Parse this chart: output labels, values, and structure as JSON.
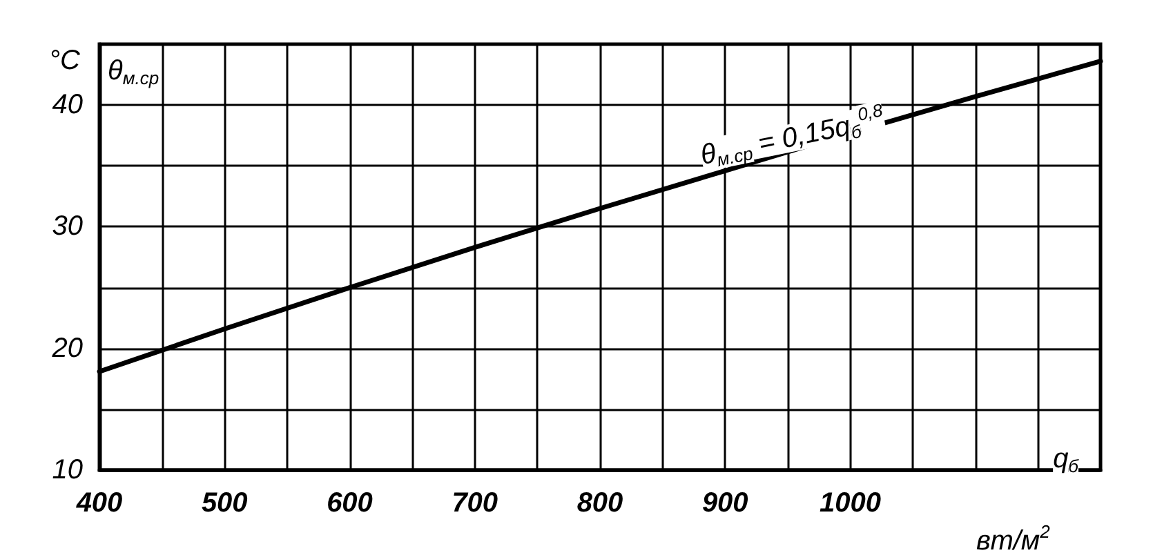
{
  "chart_data": {
    "type": "line",
    "ylabel": "°C",
    "xlabel": "вт/м$^{2}$",
    "x": [
      400,
      500,
      600,
      700,
      800,
      900,
      1000,
      1100,
      1200
    ],
    "series": [
      {
        "color": "#000000",
        "values": [
          18.1,
          21.6,
          25.0,
          28.3,
          31.5,
          34.6,
          37.7,
          40.7,
          43.6
        ]
      }
    ],
    "xlim": [
      400,
      1200
    ],
    "xticks": [
      400,
      {
        "value": 450,
        "label": null
      },
      500,
      {
        "value": 550,
        "label": null
      },
      600,
      {
        "value": 650,
        "label": null
      },
      700,
      {
        "value": 750,
        "label": null
      },
      800,
      {
        "value": 850,
        "label": null
      },
      900,
      {
        "value": 950,
        "label": null
      },
      1000,
      {
        "value": 1050,
        "label": null
      },
      {
        "value": 1100,
        "label": null
      },
      {
        "value": 1150,
        "label": null
      },
      {
        "value": 1200,
        "label": null
      }
    ],
    "ylim": [
      10,
      45
    ],
    "yticks": [
      10,
      {
        "value": 15,
        "label": null
      },
      20,
      {
        "value": 25,
        "label": null
      },
      30,
      {
        "value": 35,
        "label": null
      },
      40,
      {
        "value": 45,
        "label": null
      }
    ],
    "annotations": [
      "θ$_{м.ср}$",
      "q$_{б}$",
      "θ$_{м.ср}$ = 0,15q$_{б}$$^{0,8}$"
    ],
    "grid": true,
    "marker": "none",
    "line_style": "solid"
  }
}
